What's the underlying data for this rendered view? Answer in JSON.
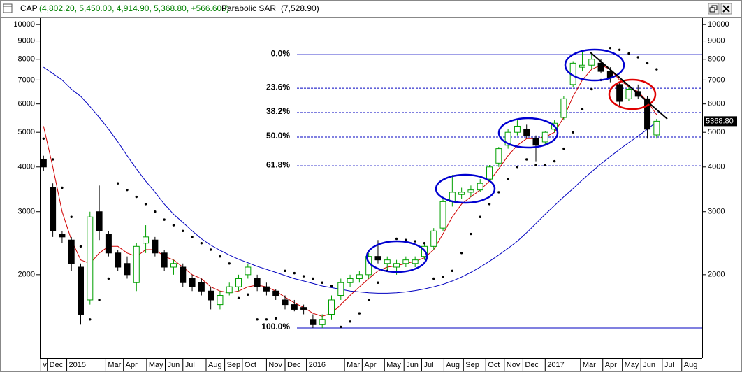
{
  "chart_data": {
    "type": "candlestick",
    "symbol": "CAP",
    "quote": "(4,802.20, 5,450.00, 4,914.90, 5,368.80, +566.600)",
    "indicator_value": "(7,528.90)",
    "log_scale": true,
    "up_color": "#00a000",
    "down_color": "#000000",
    "ylim": [
      1170,
      10420
    ],
    "yticks": [
      2000,
      3000,
      4000,
      5000,
      6000,
      7000,
      8000,
      9000,
      10000
    ],
    "xlim": [
      -0.4,
      70.9
    ],
    "xticks": [
      {
        "value": -0.3,
        "label": "v"
      },
      {
        "value": 0.4,
        "label": "Dec"
      },
      {
        "value": 2.5,
        "label": "2015"
      },
      {
        "value": 6.7,
        "label": "Mar"
      },
      {
        "value": 8.6,
        "label": "Apr"
      },
      {
        "value": 11.1,
        "label": "May"
      },
      {
        "value": 13.1,
        "label": "Jun"
      },
      {
        "value": 15.0,
        "label": "Jul"
      },
      {
        "value": 17.5,
        "label": "Aug"
      },
      {
        "value": 19.5,
        "label": "Sep"
      },
      {
        "value": 21.4,
        "label": "Oct"
      },
      {
        "value": 24.0,
        "label": "Nov"
      },
      {
        "value": 26.0,
        "label": "Dec"
      },
      {
        "value": 28.3,
        "label": "2016"
      },
      {
        "value": 32.4,
        "label": "Mar"
      },
      {
        "value": 34.3,
        "label": "Apr"
      },
      {
        "value": 36.7,
        "label": "May"
      },
      {
        "value": 38.8,
        "label": "Jun"
      },
      {
        "value": 40.7,
        "label": "Jul"
      },
      {
        "value": 43.1,
        "label": "Aug"
      },
      {
        "value": 45.2,
        "label": "Sep"
      },
      {
        "value": 47.6,
        "label": "Oct"
      },
      {
        "value": 49.6,
        "label": "Nov"
      },
      {
        "value": 51.6,
        "label": "Dec"
      },
      {
        "value": 54.0,
        "label": "2017"
      },
      {
        "value": 57.8,
        "label": "Mar"
      },
      {
        "value": 60.2,
        "label": "Apr"
      },
      {
        "value": 62.3,
        "label": "May"
      },
      {
        "value": 64.3,
        "label": "Jun"
      },
      {
        "value": 66.6,
        "label": "Jul"
      },
      {
        "value": 68.7,
        "label": "Aug"
      }
    ],
    "ohlc": [
      [
        4200,
        4300,
        3900,
        4000
      ],
      [
        3500,
        3600,
        2550,
        2650
      ],
      [
        2600,
        2650,
        2450,
        2550
      ],
      [
        2500,
        2550,
        2050,
        2150
      ],
      [
        2100,
        2150,
        1450,
        1550
      ],
      [
        1700,
        3000,
        1650,
        2900
      ],
      [
        3000,
        3550,
        2500,
        2650
      ],
      [
        2600,
        2650,
        2250,
        2300
      ],
      [
        2300,
        2350,
        2050,
        2100
      ],
      [
        2150,
        2250,
        1950,
        2000
      ],
      [
        1900,
        2450,
        1800,
        2400
      ],
      [
        2450,
        2750,
        2300,
        2550
      ],
      [
        2500,
        2550,
        2250,
        2300
      ],
      [
        2300,
        2350,
        2050,
        2100
      ],
      [
        2100,
        2200,
        2000,
        2150
      ],
      [
        2100,
        2150,
        1850,
        1900
      ],
      [
        1950,
        2000,
        1800,
        1850
      ],
      [
        1900,
        1950,
        1750,
        1800
      ],
      [
        1800,
        1850,
        1600,
        1700
      ],
      [
        1650,
        1800,
        1600,
        1750
      ],
      [
        1780,
        1900,
        1750,
        1850
      ],
      [
        1850,
        2000,
        1800,
        1950
      ],
      [
        2000,
        2150,
        1950,
        2100
      ],
      [
        1950,
        2000,
        1800,
        1850
      ],
      [
        1850,
        1900,
        1750,
        1800
      ],
      [
        1800,
        1820,
        1700,
        1750
      ],
      [
        1700,
        1750,
        1600,
        1650
      ],
      [
        1650,
        1700,
        1580,
        1600
      ],
      [
        1620,
        1650,
        1550,
        1600
      ],
      [
        1500,
        1550,
        1420,
        1450
      ],
      [
        1450,
        1550,
        1420,
        1500
      ],
      [
        1550,
        1750,
        1500,
        1700
      ],
      [
        1750,
        1950,
        1700,
        1900
      ],
      [
        1900,
        2000,
        1850,
        1950
      ],
      [
        1950,
        2050,
        1900,
        2000
      ],
      [
        2000,
        2300,
        1950,
        2250
      ],
      [
        2250,
        2500,
        2150,
        2200
      ],
      [
        2150,
        2250,
        2050,
        2200
      ],
      [
        2100,
        2200,
        2000,
        2150
      ],
      [
        2150,
        2250,
        2100,
        2200
      ],
      [
        2150,
        2250,
        2100,
        2200
      ],
      [
        2250,
        2450,
        2200,
        2400
      ],
      [
        2400,
        2700,
        2350,
        2650
      ],
      [
        2700,
        3250,
        2650,
        3200
      ],
      [
        3200,
        3800,
        3100,
        3400
      ],
      [
        3350,
        3500,
        3250,
        3400
      ],
      [
        3400,
        3550,
        3300,
        3450
      ],
      [
        3450,
        3700,
        3400,
        3600
      ],
      [
        3700,
        4050,
        3650,
        4000
      ],
      [
        4100,
        4550,
        4000,
        4500
      ],
      [
        4600,
        5100,
        4500,
        5000
      ],
      [
        5000,
        5400,
        4900,
        5200
      ],
      [
        5100,
        5250,
        4800,
        4900
      ],
      [
        4800,
        4900,
        4150,
        4600
      ],
      [
        4700,
        5050,
        4600,
        5000
      ],
      [
        5100,
        5400,
        5000,
        5300
      ],
      [
        5500,
        6300,
        5400,
        6200
      ],
      [
        6800,
        7900,
        6700,
        7800
      ],
      [
        7600,
        8500,
        7400,
        7700
      ],
      [
        7700,
        8300,
        7500,
        8000
      ],
      [
        7800,
        8000,
        7300,
        7400
      ],
      [
        7400,
        7600,
        6900,
        7100
      ],
      [
        6800,
        6900,
        5900,
        6100
      ],
      [
        6200,
        6700,
        6100,
        6600
      ],
      [
        6500,
        6800,
        6200,
        6300
      ],
      [
        6200,
        6300,
        4800,
        5100
      ],
      [
        4914.9,
        5450,
        4802.2,
        5368.8
      ]
    ],
    "last_value_label": "5368.80",
    "series": [
      {
        "color": "#d00000",
        "values": [
          5200,
          4000,
          3000,
          2500,
          2200,
          2150,
          2300,
          2400,
          2400,
          2300,
          2250,
          2350,
          2350,
          2250,
          2200,
          2100,
          2000,
          1950,
          1850,
          1800,
          1780,
          1800,
          1850,
          1870,
          1850,
          1800,
          1730,
          1670,
          1620,
          1560,
          1530,
          1560,
          1650,
          1750,
          1850,
          1950,
          2050,
          2100,
          2120,
          2150,
          2180,
          2230,
          2350,
          2600,
          2900,
          3150,
          3300,
          3450,
          3650,
          3950,
          4300,
          4600,
          4800,
          4800,
          4850,
          5000,
          5500,
          6300,
          7000,
          7500,
          7700,
          7500,
          7000,
          6700,
          6500,
          6100,
          5600
        ]
      },
      {
        "color": "#0000c0",
        "values": [
          7600,
          7300,
          7000,
          6600,
          6300,
          5900,
          5500,
          5100,
          4700,
          4300,
          3950,
          3650,
          3400,
          3150,
          2950,
          2800,
          2650,
          2520,
          2420,
          2340,
          2270,
          2210,
          2160,
          2110,
          2070,
          2030,
          1990,
          1950,
          1920,
          1890,
          1860,
          1840,
          1820,
          1800,
          1790,
          1780,
          1775,
          1775,
          1780,
          1790,
          1805,
          1825,
          1850,
          1880,
          1920,
          1970,
          2030,
          2100,
          2180,
          2270,
          2370,
          2480,
          2620,
          2780,
          2950,
          3120,
          3300,
          3480,
          3680,
          3880,
          4080,
          4280,
          4480,
          4680,
          4880,
          5100,
          5350
        ]
      }
    ],
    "sar": {
      "name": "Parabolic SAR",
      "color": "#000000",
      "values": [
        4800,
        4200,
        3500,
        2900,
        2400,
        1500,
        1700,
        1950,
        3600,
        3450,
        3300,
        3150,
        3000,
        2850,
        2750,
        2650,
        2550,
        2450,
        2350,
        2250,
        2150,
        1720,
        1760,
        1500,
        1500,
        1510,
        2050,
        2020,
        1980,
        1950,
        1900,
        1860,
        1430,
        1480,
        1560,
        1700,
        1900,
        2050,
        2520,
        2500,
        2480,
        2450,
        1950,
        1970,
        2050,
        2300,
        2600,
        2900,
        3150,
        3400,
        3700,
        4000,
        4200,
        4050,
        4050,
        4150,
        4500,
        5000,
        5800,
        6600,
        7000,
        8600,
        8500,
        8300,
        8100,
        7800,
        7500
      ]
    },
    "fib_color": "#0000c0",
    "fib_levels": [
      {
        "label": "0.0%",
        "value": 8240
      },
      {
        "label": "23.6%",
        "value": 6640
      },
      {
        "label": "38.2%",
        "value": 5675
      },
      {
        "label": "50.0%",
        "value": 4850
      },
      {
        "label": "61.8%",
        "value": 4030
      },
      {
        "label": "100.0%",
        "value": 1420
      }
    ]
  }
}
